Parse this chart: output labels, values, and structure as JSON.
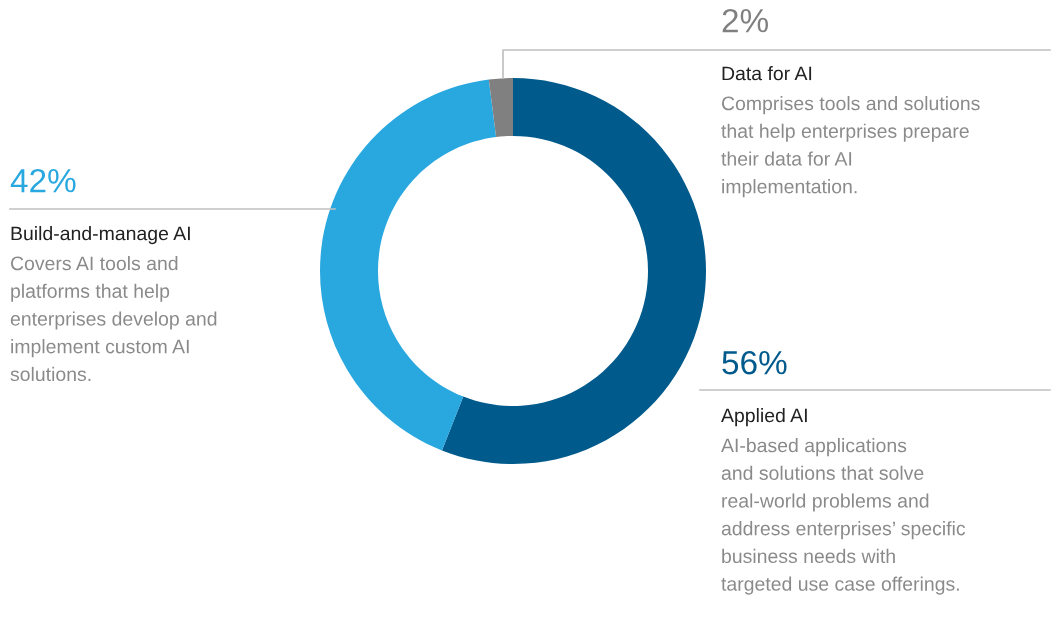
{
  "chart_data": {
    "type": "donut",
    "categories": [
      "Applied AI",
      "Build-and-manage AI",
      "Data for AI"
    ],
    "values": [
      56,
      42,
      2
    ],
    "colors": [
      "#005a8c",
      "#29a8e0",
      "#808080"
    ],
    "value_labels": [
      "56%",
      "42%",
      "2%"
    ],
    "annotations": [
      "AI-based applications\nand solutions that solve\nreal-world problems and\naddress enterprises’ specific\nbusiness needs with\ntargeted use case offerings.",
      "Covers AI tools and\nplatforms that help\nenterprises develop and\nimplement custom AI\nsolutions.",
      "Comprises tools and solutions\nthat help enterprises prepare\ntheir data for AI\nimplementation."
    ],
    "legend": false
  }
}
